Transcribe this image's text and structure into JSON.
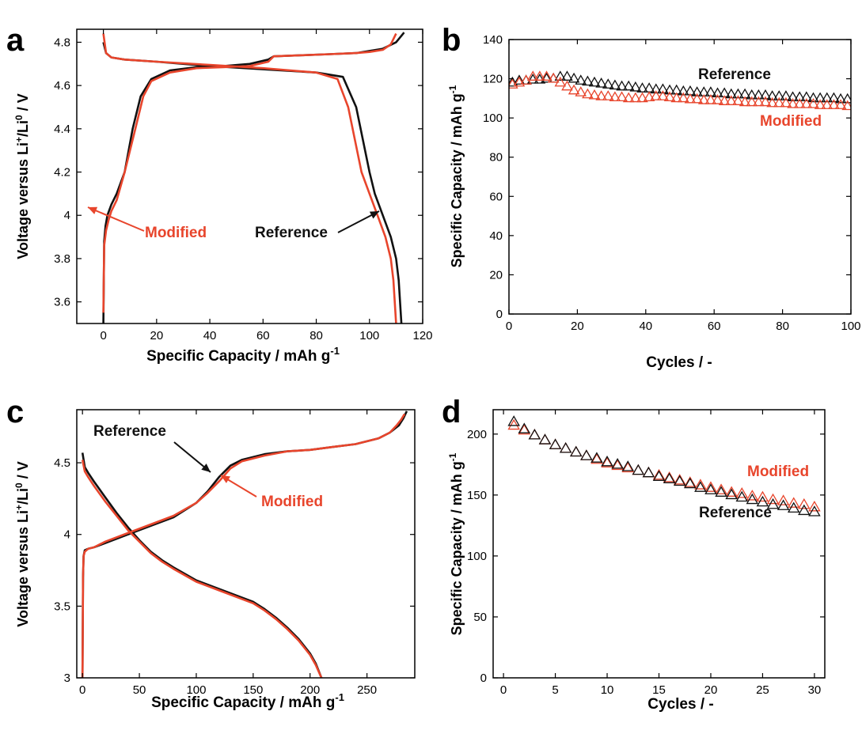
{
  "colors": {
    "reference": "#111111",
    "modified": "#e8452c"
  },
  "chart_data": [
    {
      "panel": "a",
      "type": "line",
      "xlabel": "Specific Capacity / mAh g",
      "xlabel_sup": "-1",
      "ylabel_parts": [
        "Voltage versus Li",
        "+",
        "/Li",
        "0",
        " / V"
      ],
      "xlim": [
        -10,
        120
      ],
      "ylim": [
        3.5,
        4.86
      ],
      "xticks": [
        0,
        20,
        40,
        60,
        80,
        100,
        120
      ],
      "yticks": [
        3.6,
        3.8,
        4.0,
        4.2,
        4.4,
        4.6,
        4.8
      ],
      "ytick_labels": [
        "3.6",
        "3.8",
        "4",
        "4.2",
        "4.4",
        "4.6",
        "4.8"
      ],
      "annotations": [
        {
          "text": "Modified",
          "series": "Modified"
        },
        {
          "text": "Reference",
          "series": "Reference"
        }
      ],
      "series": [
        {
          "name": "Reference",
          "curve": "charge",
          "x": [
            0,
            0.3,
            0.8,
            1.5,
            3,
            5,
            8,
            11,
            14,
            18,
            25,
            35,
            45,
            55,
            62,
            64,
            75,
            85,
            95,
            100,
            105,
            110,
            113
          ],
          "y": [
            3.5,
            3.88,
            3.95,
            4.0,
            4.05,
            4.1,
            4.2,
            4.4,
            4.55,
            4.63,
            4.67,
            4.685,
            4.69,
            4.7,
            4.72,
            4.735,
            4.74,
            4.745,
            4.75,
            4.76,
            4.77,
            4.8,
            4.845
          ]
        },
        {
          "name": "Reference",
          "curve": "discharge",
          "x": [
            0,
            1,
            3,
            8,
            20,
            40,
            60,
            80,
            90,
            95,
            100,
            102,
            105,
            108,
            110,
            111,
            112
          ],
          "y": [
            4.8,
            4.75,
            4.73,
            4.72,
            4.71,
            4.69,
            4.675,
            4.66,
            4.64,
            4.5,
            4.2,
            4.1,
            4.0,
            3.9,
            3.8,
            3.7,
            3.5
          ]
        },
        {
          "name": "Modified",
          "curve": "charge",
          "x": [
            0,
            0.3,
            1,
            2,
            3,
            5,
            8,
            12,
            15,
            18,
            25,
            35,
            45,
            55,
            62,
            64,
            75,
            85,
            95,
            100,
            105,
            108,
            110
          ],
          "y": [
            3.55,
            3.86,
            3.93,
            3.98,
            4.02,
            4.07,
            4.2,
            4.4,
            4.55,
            4.62,
            4.66,
            4.68,
            4.685,
            4.69,
            4.71,
            4.735,
            4.74,
            4.745,
            4.75,
            4.755,
            4.765,
            4.79,
            4.84
          ]
        },
        {
          "name": "Modified",
          "curve": "discharge",
          "x": [
            0,
            1,
            3,
            8,
            20,
            40,
            60,
            80,
            88,
            92,
            97,
            100,
            103,
            106,
            108,
            109,
            110
          ],
          "y": [
            4.84,
            4.75,
            4.73,
            4.72,
            4.71,
            4.695,
            4.68,
            4.66,
            4.63,
            4.5,
            4.2,
            4.1,
            4.0,
            3.9,
            3.8,
            3.7,
            3.5
          ]
        }
      ]
    },
    {
      "panel": "b",
      "type": "scatter",
      "xlabel": "Cycles / -",
      "ylabel_parts": [
        "Specific Capacity / mAh g",
        "-1"
      ],
      "xlim": [
        0,
        100
      ],
      "ylim": [
        0,
        140
      ],
      "xticks": [
        0,
        20,
        40,
        60,
        80,
        100
      ],
      "yticks": [
        0,
        20,
        40,
        60,
        80,
        100,
        120,
        140
      ],
      "annotations": [
        {
          "text": "Reference",
          "series": "Reference"
        },
        {
          "text": "Modified",
          "series": "Modified"
        }
      ],
      "series": [
        {
          "name": "Reference",
          "marker": "triangle",
          "x": [
            1,
            3,
            5,
            7,
            9,
            11,
            13,
            15,
            17,
            19,
            21,
            23,
            25,
            27,
            29,
            31,
            33,
            35,
            37,
            39,
            41,
            43,
            45,
            47,
            49,
            51,
            53,
            55,
            57,
            59,
            61,
            63,
            65,
            67,
            69,
            71,
            73,
            75,
            77,
            79,
            81,
            83,
            85,
            87,
            89,
            91,
            93,
            95,
            97,
            99
          ],
          "y": [
            118,
            119,
            119,
            119.5,
            119.5,
            120,
            120,
            121,
            121,
            120,
            119,
            118.5,
            118,
            117.5,
            117,
            116.5,
            116,
            116,
            115.5,
            115,
            115,
            114.5,
            114.5,
            114,
            114,
            113.5,
            113.5,
            113,
            113,
            113,
            112.5,
            112.5,
            112,
            112,
            112,
            111.5,
            111.5,
            111.5,
            111,
            111,
            111,
            110.5,
            110.5,
            110.5,
            110,
            110,
            110,
            110,
            109.5,
            109.5
          ]
        },
        {
          "name": "Modified",
          "marker": "triangle",
          "x": [
            1,
            3,
            5,
            7,
            9,
            11,
            13,
            15,
            17,
            19,
            21,
            23,
            25,
            27,
            29,
            31,
            33,
            35,
            37,
            39,
            41,
            43,
            45,
            47,
            49,
            51,
            53,
            55,
            57,
            59,
            61,
            63,
            65,
            67,
            69,
            71,
            73,
            75,
            77,
            79,
            81,
            83,
            85,
            87,
            89,
            91,
            93,
            95,
            97,
            99
          ],
          "y": [
            117,
            118,
            119,
            121,
            121,
            121,
            120,
            118,
            116,
            114,
            113,
            112,
            111.5,
            111,
            111,
            110.5,
            110.5,
            110,
            110,
            110,
            110.5,
            111,
            111,
            110.5,
            110,
            110,
            109.5,
            109.5,
            109,
            109,
            109,
            108.5,
            108.5,
            108.5,
            108,
            108,
            108,
            108,
            107.5,
            107.5,
            107.5,
            107,
            107,
            107,
            107,
            106.5,
            106.5,
            106.5,
            106.5,
            106
          ]
        }
      ]
    },
    {
      "panel": "c",
      "type": "line",
      "xlabel": "Specific Capacity / mAh g",
      "xlabel_sup": "-1",
      "ylabel_parts": [
        "Voltage versus Li",
        "+",
        "/Li",
        "0",
        " / V"
      ],
      "xlim": [
        -5,
        292
      ],
      "ylim": [
        3.0,
        4.87
      ],
      "xticks": [
        0,
        50,
        100,
        150,
        200,
        250
      ],
      "yticks": [
        3.0,
        3.5,
        4.0,
        4.5
      ],
      "ytick_labels": [
        "3",
        "3.5",
        "4",
        "4.5"
      ],
      "annotations": [
        {
          "text": "Reference",
          "series": "Reference"
        },
        {
          "text": "Modified",
          "series": "Modified"
        }
      ],
      "series": [
        {
          "name": "Reference",
          "curve": "charge",
          "x": [
            0,
            0.5,
            1,
            2,
            5,
            10,
            20,
            40,
            60,
            80,
            100,
            110,
            120,
            130,
            140,
            160,
            180,
            200,
            220,
            240,
            260,
            270,
            278,
            282,
            285
          ],
          "y": [
            3.0,
            3.7,
            3.85,
            3.89,
            3.9,
            3.91,
            3.94,
            4.0,
            4.06,
            4.12,
            4.22,
            4.3,
            4.4,
            4.48,
            4.52,
            4.56,
            4.58,
            4.59,
            4.61,
            4.63,
            4.67,
            4.71,
            4.76,
            4.81,
            4.86
          ]
        },
        {
          "name": "Reference",
          "curve": "discharge",
          "x": [
            0,
            2,
            5,
            10,
            20,
            30,
            40,
            50,
            60,
            70,
            80,
            100,
            120,
            140,
            150,
            160,
            170,
            180,
            190,
            200,
            205,
            210
          ],
          "y": [
            4.57,
            4.47,
            4.43,
            4.37,
            4.26,
            4.15,
            4.05,
            3.96,
            3.88,
            3.82,
            3.77,
            3.68,
            3.62,
            3.56,
            3.53,
            3.48,
            3.42,
            3.35,
            3.27,
            3.17,
            3.1,
            3.0
          ]
        },
        {
          "name": "Modified",
          "curve": "charge",
          "x": [
            0,
            0.5,
            1,
            2,
            5,
            10,
            20,
            40,
            60,
            80,
            100,
            110,
            120,
            130,
            140,
            160,
            180,
            200,
            220,
            240,
            260,
            270,
            276,
            280,
            283
          ],
          "y": [
            3.0,
            3.7,
            3.85,
            3.88,
            3.9,
            3.91,
            3.95,
            4.01,
            4.07,
            4.13,
            4.22,
            4.29,
            4.37,
            4.46,
            4.51,
            4.55,
            4.58,
            4.59,
            4.61,
            4.63,
            4.67,
            4.71,
            4.76,
            4.8,
            4.84
          ]
        },
        {
          "name": "Modified",
          "curve": "discharge",
          "x": [
            0,
            2,
            5,
            10,
            20,
            30,
            40,
            50,
            60,
            70,
            80,
            100,
            120,
            140,
            150,
            160,
            170,
            180,
            190,
            200,
            205,
            210
          ],
          "y": [
            4.52,
            4.44,
            4.4,
            4.34,
            4.23,
            4.13,
            4.03,
            3.95,
            3.87,
            3.81,
            3.76,
            3.67,
            3.61,
            3.55,
            3.52,
            3.47,
            3.41,
            3.34,
            3.26,
            3.16,
            3.09,
            3.0
          ]
        }
      ]
    },
    {
      "panel": "d",
      "type": "scatter",
      "xlabel": "Cycles / -",
      "ylabel_parts": [
        "Specific Capacity / mAh g",
        "-1"
      ],
      "xlim": [
        -1,
        31
      ],
      "ylim": [
        0,
        220
      ],
      "xticks": [
        0,
        5,
        10,
        15,
        20,
        25,
        30
      ],
      "yticks": [
        0,
        50,
        100,
        150,
        200
      ],
      "annotations": [
        {
          "text": "Modified",
          "series": "Modified"
        },
        {
          "text": "Reference",
          "series": "Reference"
        }
      ],
      "series": [
        {
          "name": "Modified",
          "marker": "triangle",
          "x": [
            1,
            2,
            3,
            4,
            5,
            6,
            7,
            8,
            9,
            10,
            11,
            12,
            13,
            14,
            15,
            16,
            17,
            18,
            19,
            20,
            21,
            22,
            23,
            24,
            25,
            26,
            27,
            28,
            29,
            30
          ],
          "y": [
            207,
            203,
            199,
            195,
            191,
            188,
            185,
            182,
            179,
            176,
            174,
            172,
            170,
            168,
            166,
            164,
            162,
            160,
            158,
            156,
            154,
            152,
            151,
            149,
            148,
            146,
            145,
            143,
            142,
            140
          ]
        },
        {
          "name": "Reference",
          "marker": "triangle",
          "x": [
            1,
            2,
            3,
            4,
            5,
            6,
            7,
            8,
            9,
            10,
            11,
            12,
            13,
            14,
            15,
            16,
            17,
            18,
            19,
            20,
            21,
            22,
            23,
            24,
            25,
            26,
            27,
            28,
            29,
            30
          ],
          "y": [
            210,
            204,
            199,
            195,
            191,
            188,
            185,
            182,
            180,
            177,
            175,
            173,
            170,
            168,
            165,
            163,
            161,
            159,
            156,
            154,
            152,
            150,
            148,
            146,
            144,
            142,
            141,
            139,
            137,
            136
          ]
        }
      ]
    }
  ]
}
